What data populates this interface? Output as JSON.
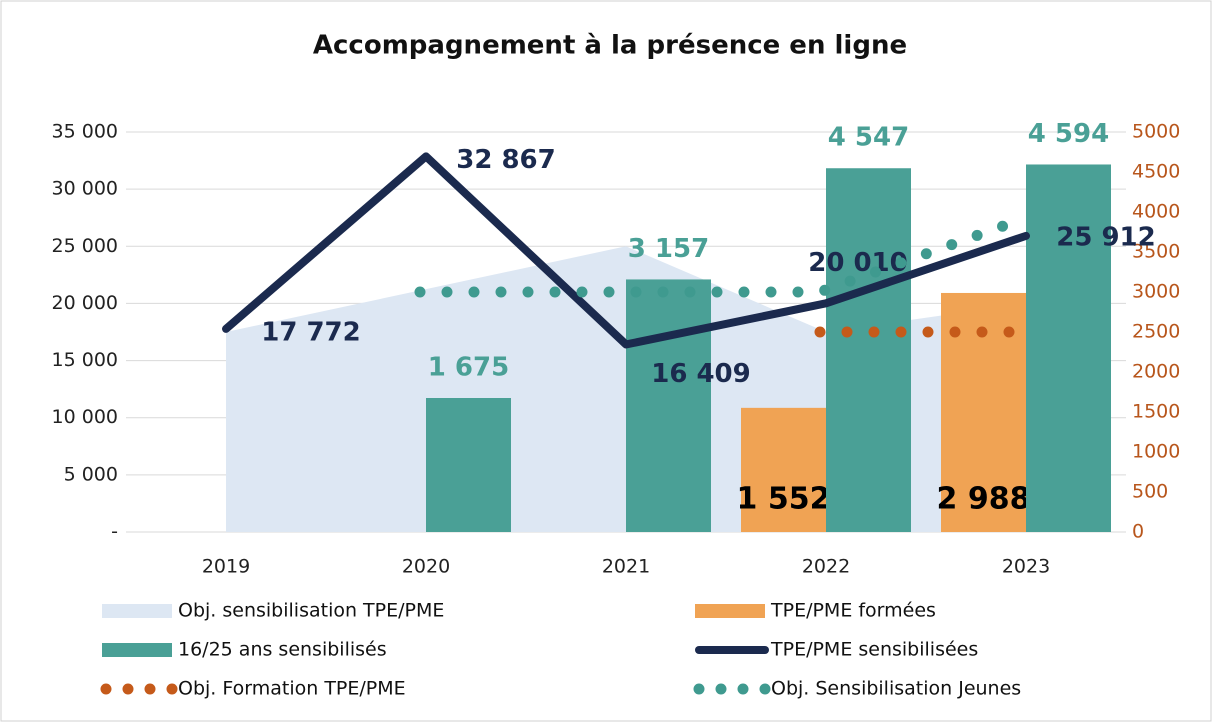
{
  "chart_data": {
    "type": "combo",
    "title": "Accompagnement à la présence en ligne",
    "categories": [
      "2019",
      "2020",
      "2021",
      "2022",
      "2023"
    ],
    "ylim": [
      0,
      35000
    ],
    "yticks": [
      {
        "value": 0,
        "label": "-"
      },
      {
        "value": 5000,
        "label": "5 000"
      },
      {
        "value": 10000,
        "label": "10 000"
      },
      {
        "value": 15000,
        "label": "15 000"
      },
      {
        "value": 20000,
        "label": "20 000"
      },
      {
        "value": 25000,
        "label": "25 000"
      },
      {
        "value": 30000,
        "label": "30 000"
      },
      {
        "value": 35000,
        "label": "35 000"
      }
    ],
    "y2lim": [
      0,
      5000
    ],
    "y2ticks": [
      0,
      500,
      1000,
      1500,
      2000,
      2500,
      3000,
      3500,
      4000,
      4500,
      5000
    ],
    "grid": true,
    "series": [
      {
        "name": "Obj. sensibilisation TPE/PME",
        "type": "area",
        "color": "#dde7f3",
        "values": [
          17500,
          21250,
          25000,
          17500,
          20000
        ]
      },
      {
        "name": "TPE/PME formées",
        "type": "bar",
        "axis": "y2",
        "color": "#f0a354",
        "values": [
          null,
          null,
          null,
          1552,
          2988
        ],
        "value_labels": [
          null,
          null,
          null,
          "1 552",
          "2 988"
        ]
      },
      {
        "name": "16/25 ans sensibilisés",
        "type": "bar",
        "axis": "y2",
        "color": "#4aa096",
        "values": [
          null,
          1675,
          3157,
          4547,
          4594
        ],
        "value_labels": [
          null,
          "1 675",
          "3 157",
          "4 547",
          "4 594"
        ]
      },
      {
        "name": "TPE/PME sensibilisées",
        "type": "line",
        "color": "#1b2a4e",
        "values": [
          17772,
          32867,
          16409,
          20010,
          25912
        ],
        "value_labels": [
          "17 772",
          "32 867",
          "16 409",
          "20 010",
          "25 912"
        ]
      },
      {
        "name": "Obj. Formation TPE/PME",
        "type": "dotted",
        "axis": "y2",
        "color": "#c55a1a",
        "values": [
          null,
          null,
          null,
          2500,
          2500
        ]
      },
      {
        "name": "Obj. Sensibilisation Jeunes",
        "type": "dotted",
        "axis": "y2",
        "color": "#3f9a8f",
        "values": [
          null,
          3000,
          3000,
          3000,
          3900
        ]
      }
    ]
  }
}
